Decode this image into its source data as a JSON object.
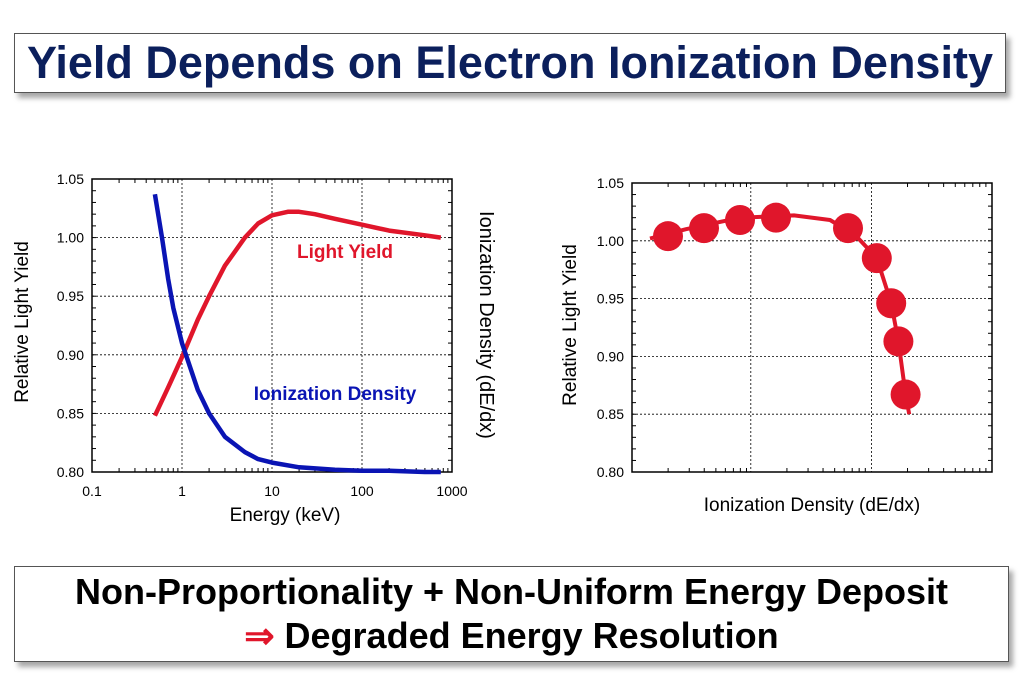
{
  "title": "Yield Depends on Electron Ionization Density",
  "conclusion": {
    "line1": "Non-Proportionality + Non-Uniform Energy Deposit",
    "arrow": "⇒",
    "line2": "Degraded Energy Resolution"
  },
  "colors": {
    "title": "#0b1f5c",
    "red": "#e0162b",
    "blue": "#0a14b4",
    "arrow": "#e0162b"
  },
  "chart_data": [
    {
      "type": "line",
      "xscale": "log",
      "xlabel": "Energy (keV)",
      "ylabel": "Relative Light Yield",
      "ylabel_right": "Ionization Density (dE/dx)",
      "xlim": [
        0.1,
        1000
      ],
      "ylim": [
        0.8,
        1.05
      ],
      "xticks": [
        "0.1",
        "1",
        "10",
        "100",
        "1000"
      ],
      "yticks": [
        "0.80",
        "0.85",
        "0.90",
        "0.95",
        "1.00",
        "1.05"
      ],
      "grid": true,
      "series": [
        {
          "name": "Light Yield",
          "color": "#e0162b",
          "x": [
            0.5,
            0.7,
            1,
            1.5,
            2,
            3,
            5,
            7,
            10,
            15,
            20,
            30,
            50,
            100,
            200,
            500,
            750
          ],
          "y": [
            0.848,
            0.872,
            0.898,
            0.93,
            0.95,
            0.976,
            1.0,
            1.012,
            1.019,
            1.022,
            1.022,
            1.02,
            1.016,
            1.011,
            1.006,
            1.002,
            1.0
          ]
        },
        {
          "name": "Ionization Density",
          "color": "#0a14b4",
          "x": [
            0.5,
            0.6,
            0.7,
            0.8,
            1,
            1.5,
            2,
            3,
            5,
            7,
            10,
            20,
            50,
            100,
            200,
            500,
            750
          ],
          "y": [
            1.037,
            1.0,
            0.965,
            0.94,
            0.91,
            0.87,
            0.85,
            0.83,
            0.817,
            0.811,
            0.808,
            0.804,
            0.802,
            0.801,
            0.801,
            0.8,
            0.8
          ]
        }
      ]
    },
    {
      "type": "scatter",
      "xlabel": "Ionization Density (dE/dx)",
      "ylabel": "Relative Light Yield",
      "ylim": [
        0.8,
        1.05
      ],
      "yticks": [
        "0.80",
        "0.85",
        "0.90",
        "0.95",
        "1.00",
        "1.05"
      ],
      "xticks": [],
      "grid": true,
      "series": [
        {
          "name": "",
          "color": "#e0162b",
          "x": [
            0.1,
            0.2,
            0.3,
            0.4,
            0.6,
            0.68,
            0.72,
            0.74,
            0.76
          ],
          "y": [
            1.004,
            1.011,
            1.018,
            1.02,
            1.011,
            0.985,
            0.946,
            0.913,
            0.867
          ]
        }
      ],
      "fit_line": {
        "x": [
          0.05,
          0.15,
          0.3,
          0.45,
          0.55,
          0.62,
          0.68,
          0.72,
          0.74,
          0.76,
          0.77
        ],
        "y": [
          1.002,
          1.01,
          1.02,
          1.022,
          1.018,
          1.005,
          0.985,
          0.946,
          0.913,
          0.867,
          0.85
        ]
      }
    }
  ]
}
